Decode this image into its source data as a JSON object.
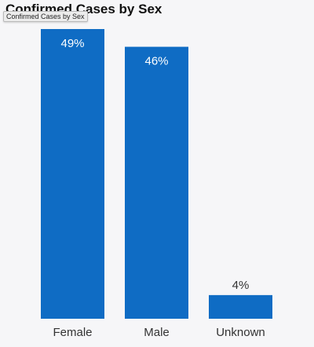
{
  "chart_data": {
    "type": "bar",
    "title": "Confirmed Cases by Sex",
    "categories": [
      "Female",
      "Male",
      "Unknown"
    ],
    "values": [
      49,
      46,
      4
    ],
    "data_labels": [
      "49%",
      "46%",
      "4%"
    ],
    "unit": "%",
    "ylim": [
      0,
      49
    ],
    "grid": false,
    "legend": "none",
    "bar_color": "#0f6cc4"
  },
  "tooltip": {
    "text": "Confirmed Cases by Sex"
  }
}
